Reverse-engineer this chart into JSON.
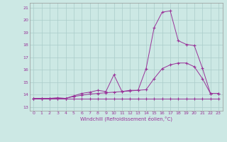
{
  "xlabel": "Windchill (Refroidissement éolien,°C)",
  "bg_color": "#cce8e4",
  "grid_color": "#aaccca",
  "line_color": "#993399",
  "xlim": [
    -0.5,
    23.5
  ],
  "ylim": [
    12.7,
    21.4
  ],
  "yticks": [
    13,
    14,
    15,
    16,
    17,
    18,
    19,
    20,
    21
  ],
  "xticks": [
    0,
    1,
    2,
    3,
    4,
    5,
    6,
    7,
    8,
    9,
    10,
    11,
    12,
    13,
    14,
    15,
    16,
    17,
    18,
    19,
    20,
    21,
    22,
    23
  ],
  "line1_x": [
    0,
    1,
    2,
    3,
    4,
    5,
    6,
    7,
    8,
    9,
    10,
    11,
    12,
    13,
    14,
    15,
    16,
    17,
    18,
    19,
    20,
    21,
    22,
    23
  ],
  "line1_y": [
    13.7,
    13.7,
    13.7,
    13.7,
    13.7,
    13.7,
    13.7,
    13.7,
    13.7,
    13.7,
    13.7,
    13.7,
    13.7,
    13.7,
    13.7,
    13.7,
    13.7,
    13.7,
    13.7,
    13.7,
    13.7,
    13.7,
    13.7,
    13.7
  ],
  "line2_x": [
    0,
    1,
    2,
    3,
    4,
    5,
    6,
    7,
    8,
    9,
    10,
    11,
    12,
    13,
    14,
    15,
    16,
    17,
    18,
    19,
    20,
    21,
    22,
    23
  ],
  "line2_y": [
    13.7,
    13.7,
    13.7,
    13.75,
    13.7,
    13.85,
    13.95,
    14.05,
    14.1,
    14.15,
    14.2,
    14.25,
    14.3,
    14.35,
    14.4,
    15.3,
    16.1,
    16.4,
    16.55,
    16.55,
    16.25,
    15.3,
    14.1,
    14.1
  ],
  "line3_x": [
    0,
    1,
    2,
    3,
    4,
    5,
    6,
    7,
    8,
    9,
    10,
    11,
    12,
    13,
    14,
    15,
    16,
    17,
    18,
    19,
    20,
    21,
    22,
    23
  ],
  "line3_y": [
    13.7,
    13.7,
    13.7,
    13.7,
    13.7,
    13.9,
    14.1,
    14.2,
    14.35,
    14.25,
    15.6,
    14.25,
    14.35,
    14.35,
    16.1,
    19.4,
    20.65,
    20.75,
    18.35,
    18.05,
    17.95,
    16.15,
    14.1,
    14.1
  ]
}
